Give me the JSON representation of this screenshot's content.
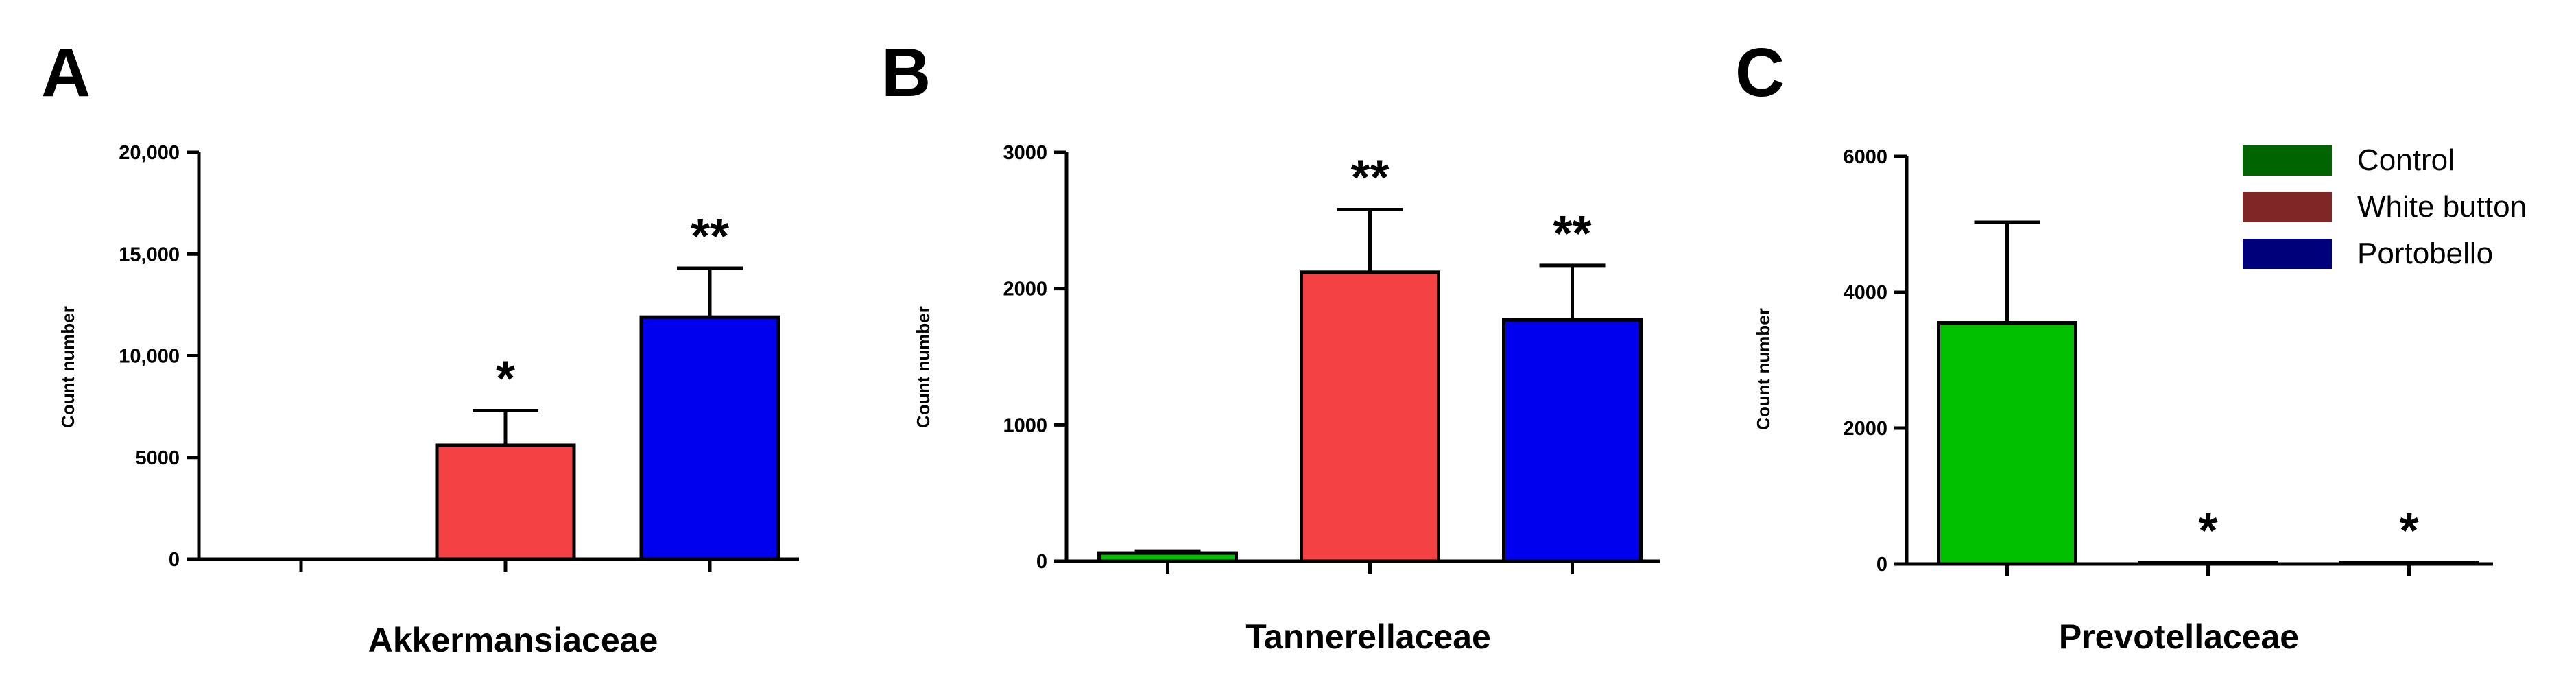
{
  "legend": [
    {
      "label": "Control",
      "color": "#00c000",
      "swatch_color": "#006400"
    },
    {
      "label": "White button",
      "color": "#f44144",
      "swatch_color": "#802626"
    },
    {
      "label": "Portobello",
      "color": "#0000ee",
      "swatch_color": "#00007a"
    }
  ],
  "chart_data": [
    {
      "type": "bar",
      "panel_label": "A",
      "title": "Akkermansiaceae",
      "xlabel": "",
      "ylabel": "Count number",
      "categories": [
        "Control",
        "White button",
        "Portobello"
      ],
      "values": [
        0,
        5600,
        11900
      ],
      "errors": [
        0,
        1700,
        2400
      ],
      "significance": [
        "",
        "*",
        "**"
      ],
      "ylim": [
        0,
        20000
      ],
      "yticks": [
        0,
        5000,
        10000,
        15000,
        20000
      ],
      "ytick_labels": [
        "0",
        "5000",
        "10,000",
        "15,000",
        "20,000"
      ],
      "grid": false,
      "legend_position": "none"
    },
    {
      "type": "bar",
      "panel_label": "B",
      "title": "Tannerellaceae",
      "xlabel": "",
      "ylabel": "Count number",
      "categories": [
        "Control",
        "White button",
        "Portobello"
      ],
      "values": [
        60,
        2120,
        1770
      ],
      "errors": [
        15,
        460,
        400
      ],
      "significance": [
        "",
        "**",
        "**"
      ],
      "ylim": [
        0,
        3000
      ],
      "yticks": [
        0,
        1000,
        2000,
        3000
      ],
      "ytick_labels": [
        "0",
        "1000",
        "2000",
        "3000"
      ],
      "grid": false,
      "legend_position": "none"
    },
    {
      "type": "bar",
      "panel_label": "C",
      "title": "Prevotellaceae",
      "xlabel": "",
      "ylabel": "Count number",
      "categories": [
        "Control",
        "White button",
        "Portobello"
      ],
      "values": [
        3550,
        20,
        20
      ],
      "errors": [
        1480,
        0,
        0
      ],
      "significance": [
        "",
        "*",
        "*"
      ],
      "ylim": [
        0,
        6000
      ],
      "yticks": [
        0,
        2000,
        4000,
        6000
      ],
      "ytick_labels": [
        "0",
        "2000",
        "4000",
        "6000"
      ],
      "grid": false,
      "legend_position": "top-right"
    }
  ]
}
